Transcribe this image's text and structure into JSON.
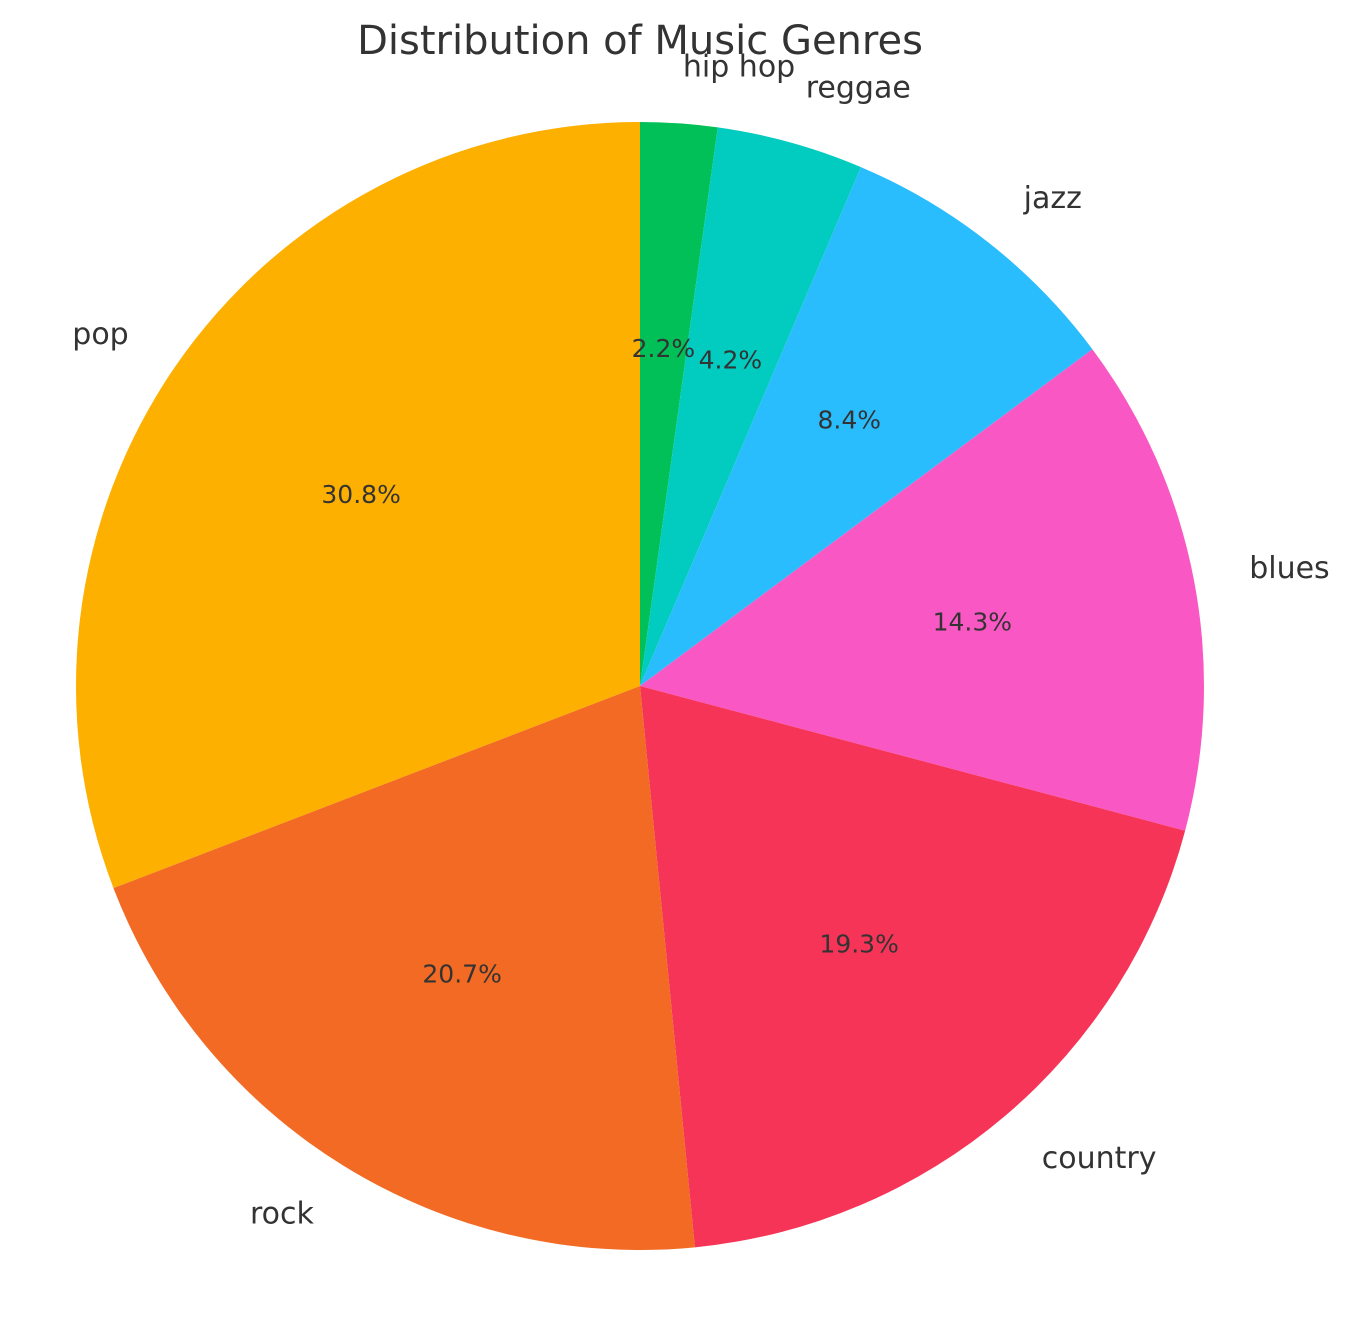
{
  "chart_data": {
    "type": "pie",
    "title": "Distribution of Music Genres",
    "categories": [
      "hip hop",
      "reggae",
      "jazz",
      "blues",
      "country",
      "rock",
      "pop"
    ],
    "values": [
      2.2,
      4.2,
      8.4,
      14.3,
      19.3,
      20.7,
      30.8
    ],
    "value_labels": [
      "2.2%",
      "4.2%",
      "8.4%",
      "14.3%",
      "19.3%",
      "20.7%",
      "30.8%"
    ],
    "colors": [
      "#02c058",
      "#02ccc0",
      "#2abdfd",
      "#f958c4",
      "#f63457",
      "#f26a23",
      "#fdb000"
    ],
    "start_angle": "top",
    "direction": "clockwise",
    "legend": "none"
  }
}
